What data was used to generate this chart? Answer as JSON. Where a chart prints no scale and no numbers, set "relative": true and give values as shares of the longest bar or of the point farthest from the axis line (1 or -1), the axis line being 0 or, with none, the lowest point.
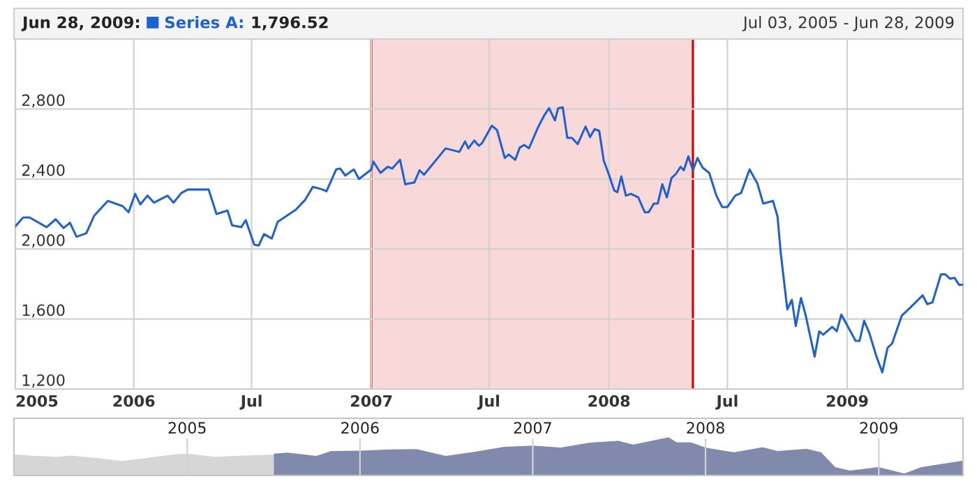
{
  "chart_data": [
    {
      "type": "line",
      "legend": "top left",
      "grid": true,
      "annotations": [
        "Jun 28, 2009:",
        "1,796.52",
        "Jul 03, 2005 - Jun 28, 2009"
      ],
      "xlim": [
        "2005-07-03",
        "2009-06-28"
      ],
      "xticks": [
        {
          "value": "2005-07-03",
          "label": "2005"
        },
        {
          "value": "2006-01-01",
          "label": "2006"
        },
        {
          "value": "2006-07-01",
          "label": "Jul"
        },
        {
          "value": "2007-01-01",
          "label": "2007"
        },
        {
          "value": "2007-07-01",
          "label": "Jul"
        },
        {
          "value": "2008-01-01",
          "label": "2008"
        },
        {
          "value": "2008-07-01",
          "label": "Jul"
        },
        {
          "value": "2009-01-01",
          "label": "2009"
        }
      ],
      "ylim": [
        1200,
        3200
      ],
      "yticks": [
        {
          "value": 1200,
          "label": "1,200"
        },
        {
          "value": 1600,
          "label": "1,600"
        },
        {
          "value": 2000,
          "label": "2,000"
        },
        {
          "value": 2400,
          "label": "2,400"
        },
        {
          "value": 2800,
          "label": "2,800"
        }
      ],
      "bands": [
        {
          "axis": "x",
          "from": "2007-01-01",
          "to": "2008-05-09",
          "color": "#f8d8d8"
        }
      ],
      "ref_lines": [
        {
          "axis": "x",
          "value": "2007-01-01",
          "color": "#cc0000"
        },
        {
          "axis": "x",
          "value": "2008-05-09",
          "color": "#cc0000"
        }
      ],
      "series": [
        {
          "name": "Series A:",
          "color": "#1f62cf",
          "x": [
            "2005-07-03",
            "2005-07-15",
            "2005-07-25",
            "2005-08-20",
            "2005-09-03",
            "2005-09-15",
            "2005-09-25",
            "2005-10-05",
            "2005-10-20",
            "2005-11-01",
            "2005-11-22",
            "2005-12-15",
            "2005-12-24",
            "2006-01-03",
            "2006-01-11",
            "2006-01-22",
            "2006-02-01",
            "2006-02-22",
            "2006-03-03",
            "2006-03-15",
            "2006-03-25",
            "2006-04-12",
            "2006-04-26",
            "2006-05-08",
            "2006-05-25",
            "2006-06-01",
            "2006-06-15",
            "2006-06-22",
            "2006-07-05",
            "2006-07-12",
            "2006-07-20",
            "2006-08-01",
            "2006-08-10",
            "2006-08-24",
            "2006-09-07",
            "2006-09-21",
            "2006-10-03",
            "2006-10-18",
            "2006-10-24",
            "2006-11-08",
            "2006-11-14",
            "2006-11-22",
            "2006-12-05",
            "2006-12-13",
            "2007-01-01",
            "2007-01-04",
            "2007-01-15",
            "2007-01-26",
            "2007-02-02",
            "2007-02-14",
            "2007-02-22",
            "2007-03-08",
            "2007-03-16",
            "2007-03-23",
            "2007-04-25",
            "2007-05-16",
            "2007-05-25",
            "2007-05-30",
            "2007-06-08",
            "2007-06-15",
            "2007-06-20",
            "2007-07-05",
            "2007-07-13",
            "2007-07-25",
            "2007-07-31",
            "2007-08-10",
            "2007-08-17",
            "2007-08-24",
            "2007-08-31",
            "2007-09-14",
            "2007-09-23",
            "2007-10-01",
            "2007-10-10",
            "2007-10-15",
            "2007-10-22",
            "2007-10-29",
            "2007-11-05",
            "2007-11-14",
            "2007-11-26",
            "2007-12-03",
            "2007-12-10",
            "2007-12-17",
            "2007-12-24",
            "2008-01-01",
            "2008-01-09",
            "2008-01-14",
            "2008-01-20",
            "2008-01-27",
            "2008-02-04",
            "2008-02-15",
            "2008-02-25",
            "2008-03-02",
            "2008-03-10",
            "2008-03-16",
            "2008-03-23",
            "2008-03-30",
            "2008-04-06",
            "2008-04-13",
            "2008-04-20",
            "2008-04-25",
            "2008-05-02",
            "2008-05-09",
            "2008-05-16",
            "2008-05-24",
            "2008-06-03",
            "2008-06-14",
            "2008-06-23",
            "2008-07-01",
            "2008-07-13",
            "2008-07-22",
            "2008-08-04",
            "2008-08-16",
            "2008-08-25",
            "2008-09-09",
            "2008-09-16",
            "2008-09-21",
            "2008-10-01",
            "2008-10-08",
            "2008-10-14",
            "2008-10-22",
            "2008-10-29",
            "2008-11-12",
            "2008-11-19",
            "2008-11-25",
            "2008-12-09",
            "2008-12-16",
            "2008-12-23",
            "2009-01-14",
            "2009-01-20",
            "2009-01-27",
            "2009-02-04",
            "2009-02-15",
            "2009-02-24",
            "2009-03-04",
            "2009-03-11",
            "2009-03-26",
            "2009-04-05",
            "2009-04-27",
            "2009-05-04",
            "2009-05-12",
            "2009-05-25",
            "2009-06-01",
            "2009-06-08",
            "2009-06-15",
            "2009-06-22",
            "2009-06-28"
          ],
          "values": [
            2130,
            2180,
            2180,
            2125,
            2170,
            2120,
            2150,
            2070,
            2090,
            2190,
            2275,
            2245,
            2210,
            2315,
            2255,
            2305,
            2265,
            2305,
            2265,
            2320,
            2340,
            2340,
            2340,
            2200,
            2220,
            2135,
            2125,
            2165,
            2025,
            2020,
            2085,
            2060,
            2155,
            2190,
            2225,
            2280,
            2355,
            2340,
            2330,
            2455,
            2460,
            2420,
            2455,
            2400,
            2455,
            2500,
            2435,
            2470,
            2460,
            2510,
            2370,
            2380,
            2450,
            2425,
            2575,
            2555,
            2615,
            2575,
            2620,
            2590,
            2605,
            2705,
            2680,
            2520,
            2540,
            2510,
            2580,
            2595,
            2575,
            2695,
            2760,
            2805,
            2735,
            2805,
            2810,
            2635,
            2635,
            2600,
            2700,
            2640,
            2685,
            2675,
            2505,
            2425,
            2335,
            2325,
            2415,
            2305,
            2315,
            2295,
            2210,
            2210,
            2260,
            2260,
            2370,
            2295,
            2405,
            2430,
            2470,
            2450,
            2530,
            2450,
            2520,
            2465,
            2435,
            2305,
            2240,
            2240,
            2305,
            2320,
            2455,
            2375,
            2260,
            2275,
            2185,
            1975,
            1655,
            1710,
            1560,
            1720,
            1625,
            1385,
            1530,
            1510,
            1555,
            1530,
            1625,
            1475,
            1475,
            1590,
            1520,
            1385,
            1295,
            1435,
            1460,
            1620,
            1655,
            1735,
            1685,
            1695,
            1855,
            1855,
            1830,
            1835,
            1795,
            1796.52
          ]
        }
      ]
    },
    {
      "type": "area",
      "relative": true,
      "grid": "x",
      "xlim": [
        "2004-01-01",
        "2009-06-28"
      ],
      "xticks": [
        {
          "value": "2005-01-01",
          "label": "2005"
        },
        {
          "value": "2006-01-01",
          "label": "2006"
        },
        {
          "value": "2007-01-01",
          "label": "2007"
        },
        {
          "value": "2008-01-01",
          "label": "2008"
        },
        {
          "value": "2009-01-01",
          "label": "2009"
        }
      ],
      "series": [
        {
          "color": "#d6d6d6",
          "x": [
            "2004-01-01",
            "2004-02-01",
            "2004-04-01",
            "2004-05-01",
            "2004-07-01",
            "2004-08-15",
            "2004-10-01",
            "2004-12-01",
            "2005-01-01",
            "2005-03-01",
            "2005-05-01",
            "2005-07-03"
          ],
          "values": [
            0.55,
            0.52,
            0.49,
            0.52,
            0.45,
            0.38,
            0.45,
            0.55,
            0.57,
            0.49,
            0.52,
            0.55
          ]
        },
        {
          "color": "#8189ad",
          "x": [
            "2005-07-03",
            "2005-08-01",
            "2005-10-01",
            "2005-11-01",
            "2006-01-01",
            "2006-03-01",
            "2006-05-01",
            "2006-07-01",
            "2006-09-01",
            "2006-11-01",
            "2007-01-01",
            "2007-03-01",
            "2007-05-01",
            "2007-07-01",
            "2007-08-01",
            "2007-10-15",
            "2007-11-01",
            "2007-12-01",
            "2008-01-01",
            "2008-03-01",
            "2008-05-01",
            "2008-06-01",
            "2008-08-01",
            "2008-09-01",
            "2008-10-01",
            "2008-11-01",
            "2008-12-31",
            "2009-02-24",
            "2009-04-01",
            "2009-06-28"
          ],
          "values": [
            0.57,
            0.6,
            0.51,
            0.64,
            0.65,
            0.68,
            0.69,
            0.51,
            0.62,
            0.75,
            0.78,
            0.73,
            0.86,
            0.91,
            0.81,
            1.0,
            0.87,
            0.87,
            0.73,
            0.61,
            0.74,
            0.64,
            0.7,
            0.61,
            0.22,
            0.13,
            0.22,
            0.05,
            0.22,
            0.39
          ]
        }
      ]
    }
  ]
}
